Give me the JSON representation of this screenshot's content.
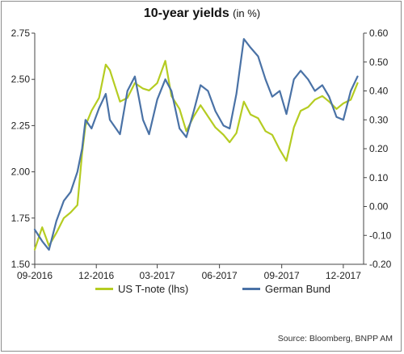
{
  "title": "10-year yields",
  "title_unit": "(in %)",
  "source": "Source: Bloomberg, BNPP AM",
  "colors": {
    "us": "#b5cc22",
    "de": "#4a72a6",
    "axis": "#444444",
    "grid": "#d9d9d9"
  },
  "chart_data": {
    "type": "line",
    "x_range": [
      "2016-09-01",
      "2017-12-31"
    ],
    "x_ticks": [
      "09-2016",
      "12-2016",
      "03-2017",
      "06-2017",
      "09-2017",
      "12-2017"
    ],
    "y_left": {
      "ylim": [
        1.5,
        2.75
      ],
      "ticks": [
        "1.50",
        "1.75",
        "2.00",
        "2.25",
        "2.50",
        "2.75"
      ]
    },
    "y_right": {
      "ylim": [
        -0.2,
        0.6
      ],
      "ticks": [
        "-0.20",
        "-0.10",
        "0.00",
        "0.10",
        "0.20",
        "0.30",
        "0.40",
        "0.50",
        "0.60"
      ]
    },
    "series": [
      {
        "name": "US T-note (lhs)",
        "axis": "left",
        "x": [
          "2016-09-01",
          "2016-09-12",
          "2016-09-22",
          "2016-10-03",
          "2016-10-14",
          "2016-10-24",
          "2016-11-03",
          "2016-11-10",
          "2016-11-15",
          "2016-11-24",
          "2016-12-05",
          "2016-12-15",
          "2016-12-21",
          "2017-01-05",
          "2017-01-16",
          "2017-01-27",
          "2017-02-08",
          "2017-02-17",
          "2017-03-01",
          "2017-03-13",
          "2017-03-22",
          "2017-04-03",
          "2017-04-13",
          "2017-04-24",
          "2017-05-04",
          "2017-05-15",
          "2017-05-26",
          "2017-06-07",
          "2017-06-16",
          "2017-06-26",
          "2017-07-07",
          "2017-07-17",
          "2017-07-28",
          "2017-08-08",
          "2017-08-18",
          "2017-08-29",
          "2017-09-08",
          "2017-09-19",
          "2017-09-29",
          "2017-10-10",
          "2017-10-20",
          "2017-10-31",
          "2017-11-10",
          "2017-11-21",
          "2017-12-01",
          "2017-12-12",
          "2017-12-22"
        ],
        "y": [
          1.58,
          1.7,
          1.6,
          1.67,
          1.75,
          1.78,
          1.82,
          2.1,
          2.25,
          2.33,
          2.4,
          2.58,
          2.55,
          2.38,
          2.4,
          2.48,
          2.45,
          2.44,
          2.48,
          2.6,
          2.41,
          2.34,
          2.22,
          2.3,
          2.36,
          2.3,
          2.24,
          2.2,
          2.16,
          2.21,
          2.38,
          2.31,
          2.29,
          2.22,
          2.2,
          2.12,
          2.06,
          2.24,
          2.33,
          2.35,
          2.39,
          2.41,
          2.38,
          2.34,
          2.37,
          2.39,
          2.48
        ]
      },
      {
        "name": "German Bund",
        "axis": "right",
        "x": [
          "2016-09-01",
          "2016-09-12",
          "2016-09-22",
          "2016-10-03",
          "2016-10-14",
          "2016-10-24",
          "2016-11-03",
          "2016-11-10",
          "2016-11-15",
          "2016-11-24",
          "2016-12-05",
          "2016-12-15",
          "2016-12-21",
          "2017-01-05",
          "2017-01-16",
          "2017-01-27",
          "2017-02-08",
          "2017-02-17",
          "2017-03-01",
          "2017-03-13",
          "2017-03-22",
          "2017-04-03",
          "2017-04-13",
          "2017-04-24",
          "2017-05-04",
          "2017-05-15",
          "2017-05-26",
          "2017-06-07",
          "2017-06-16",
          "2017-06-26",
          "2017-07-07",
          "2017-07-17",
          "2017-07-28",
          "2017-08-08",
          "2017-08-18",
          "2017-08-29",
          "2017-09-08",
          "2017-09-19",
          "2017-09-29",
          "2017-10-10",
          "2017-10-20",
          "2017-10-31",
          "2017-11-10",
          "2017-11-21",
          "2017-12-01",
          "2017-12-12",
          "2017-12-22"
        ],
        "y": [
          -0.08,
          -0.12,
          -0.15,
          -0.05,
          0.02,
          0.05,
          0.12,
          0.2,
          0.3,
          0.27,
          0.34,
          0.39,
          0.3,
          0.25,
          0.4,
          0.45,
          0.3,
          0.25,
          0.37,
          0.44,
          0.4,
          0.27,
          0.24,
          0.33,
          0.42,
          0.4,
          0.33,
          0.28,
          0.27,
          0.39,
          0.58,
          0.55,
          0.52,
          0.44,
          0.38,
          0.4,
          0.32,
          0.44,
          0.47,
          0.44,
          0.4,
          0.42,
          0.38,
          0.31,
          0.3,
          0.4,
          0.45
        ]
      }
    ]
  }
}
